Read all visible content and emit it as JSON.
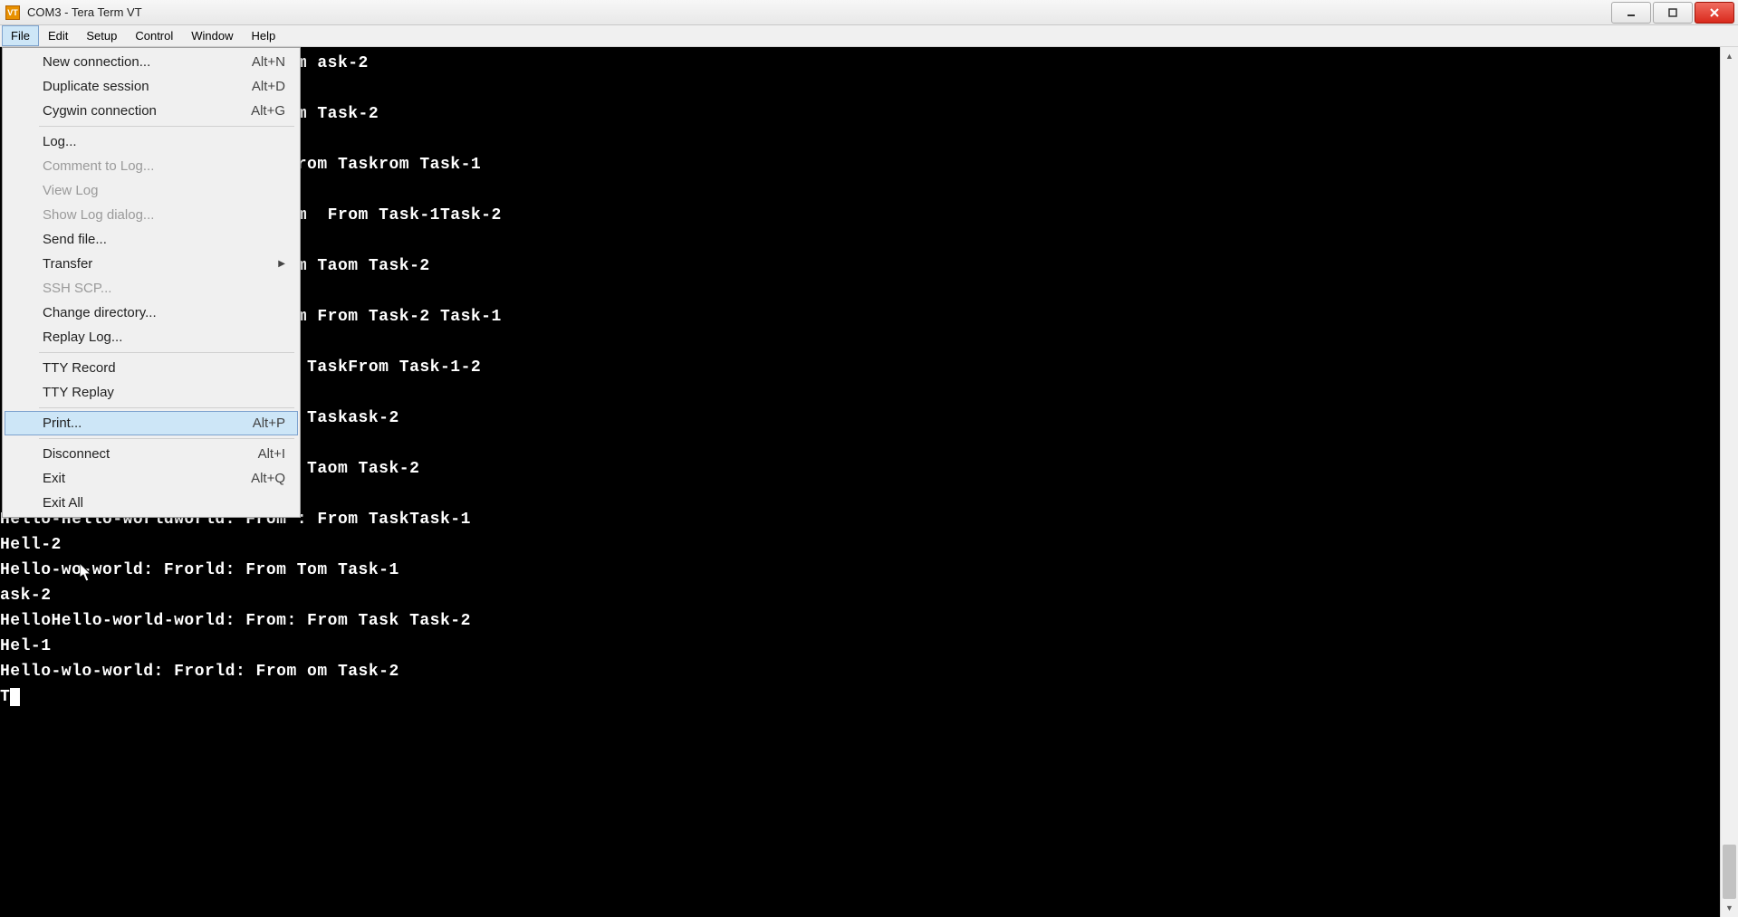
{
  "window": {
    "title": "COM3 - Tera Term VT",
    "icon_label": "VT"
  },
  "menubar": {
    "items": [
      "File",
      "Edit",
      "Setup",
      "Control",
      "Window",
      "Help"
    ],
    "active_index": 0
  },
  "dropdown": {
    "highlighted_index": 14,
    "items": [
      {
        "label": "New connection...",
        "shortcut": "Alt+N",
        "enabled": true
      },
      {
        "label": "Duplicate session",
        "shortcut": "Alt+D",
        "enabled": true
      },
      {
        "label": "Cygwin connection",
        "shortcut": "Alt+G",
        "enabled": true
      },
      {
        "sep": true
      },
      {
        "label": "Log...",
        "enabled": true
      },
      {
        "label": "Comment to Log...",
        "enabled": false
      },
      {
        "label": "View Log",
        "enabled": false
      },
      {
        "label": "Show Log dialog...",
        "enabled": false
      },
      {
        "label": "Send file...",
        "enabled": true
      },
      {
        "label": "Transfer",
        "submenu": true,
        "enabled": true
      },
      {
        "label": "SSH SCP...",
        "enabled": false
      },
      {
        "label": "Change directory...",
        "enabled": true
      },
      {
        "label": "Replay Log...",
        "enabled": true
      },
      {
        "sep": true
      },
      {
        "label": "TTY Record",
        "enabled": true
      },
      {
        "label": "TTY Replay",
        "enabled": true
      },
      {
        "sep": true
      },
      {
        "label": "Print...",
        "shortcut": "Alt+P",
        "enabled": true
      },
      {
        "sep": true
      },
      {
        "label": "Disconnect",
        "shortcut": "Alt+I",
        "enabled": true
      },
      {
        "label": "Exit",
        "shortcut": "Alt+Q",
        "enabled": true
      },
      {
        "label": "Exit All",
        "enabled": true
      }
    ]
  },
  "terminal": {
    "font_color": "#ffffff",
    "background_color": "#000000",
    "lines": [
      "                             m ask-2",
      "",
      "                             m Task-2",
      "",
      "                             rom Taskrom Task-1",
      "",
      "                             m  From Task-1Task-2",
      "",
      "                             m Taom Task-2",
      "",
      "                             m From Task-2 Task-1",
      "",
      "                              TaskFrom Task-1-2",
      "",
      "                              Taskask-2",
      "",
      "                              Taom Task-2",
      "",
      "Hello-Hello-worldworld: From : From TaskTask-1",
      "Hell-2",
      "Hello-wo-world: Frorld: From Tom Task-1",
      "ask-2",
      "HelloHello-world-world: From: From Task Task-2",
      "Hel-1",
      "Hello-wlo-world: Frorld: From om Task-2",
      "T"
    ],
    "cursor_on_last_line": true
  },
  "colors": {
    "titlebar_bg_top": "#f7f7f7",
    "titlebar_bg_bottom": "#e8e8e8",
    "menubar_bg": "#f0f0f0",
    "highlight_bg": "#cde6f7",
    "highlight_border": "#7da2ce",
    "close_red_top": "#f06b5f",
    "close_red_bottom": "#d9291c",
    "disabled_text": "#9a9a9a"
  }
}
